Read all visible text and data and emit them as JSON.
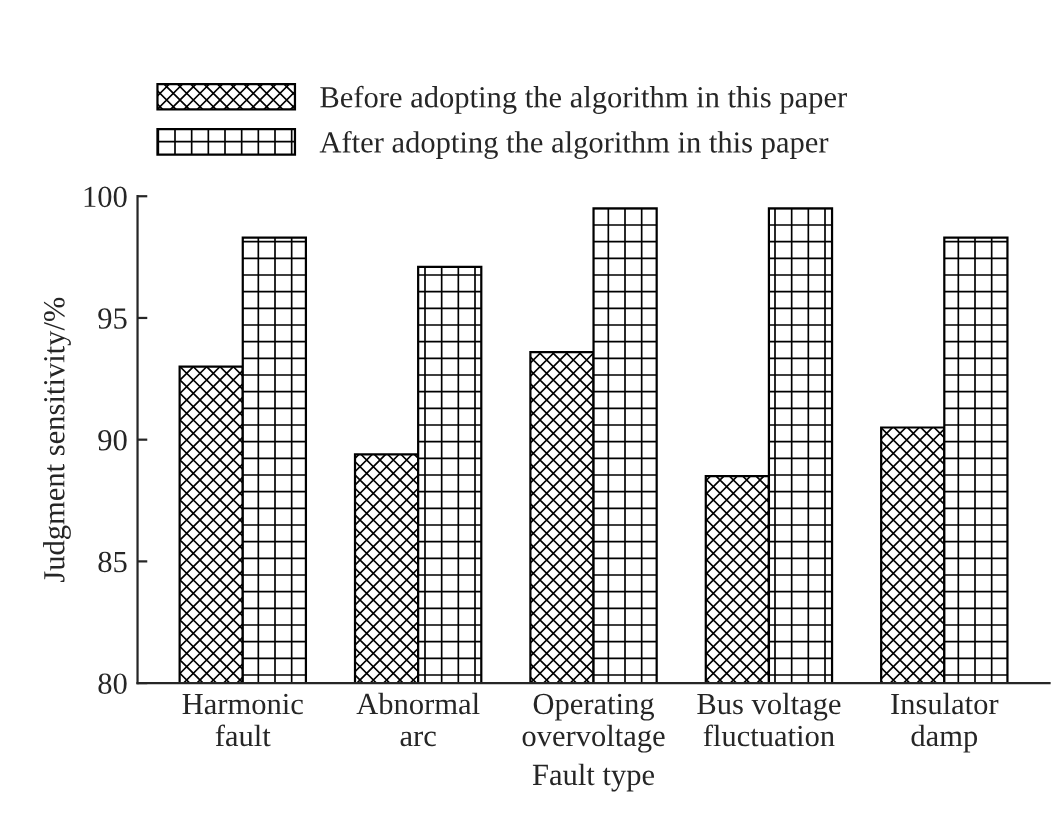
{
  "chart_data": {
    "type": "bar",
    "xlabel": "Fault type",
    "ylabel": "Judgment sensitivity/%",
    "categories": [
      "Harmonic\nfault",
      "Abnormal\narc",
      "Operating\novervoltage",
      "Bus voltage\nfluctuation",
      "Insulator\ndamp"
    ],
    "series": [
      {
        "name": "Before adopting the algorithm in this paper",
        "color": "#000000",
        "values": [
          93.0,
          89.4,
          93.6,
          88.5,
          90.5
        ]
      },
      {
        "name": "After adopting the algorithm in this paper",
        "color": "#000000",
        "values": [
          98.3,
          97.1,
          99.5,
          99.5,
          98.3
        ]
      }
    ],
    "ylim": [
      80,
      100
    ],
    "yticks": [
      80,
      85,
      90,
      95,
      100
    ],
    "grid": false,
    "legend": "top"
  }
}
